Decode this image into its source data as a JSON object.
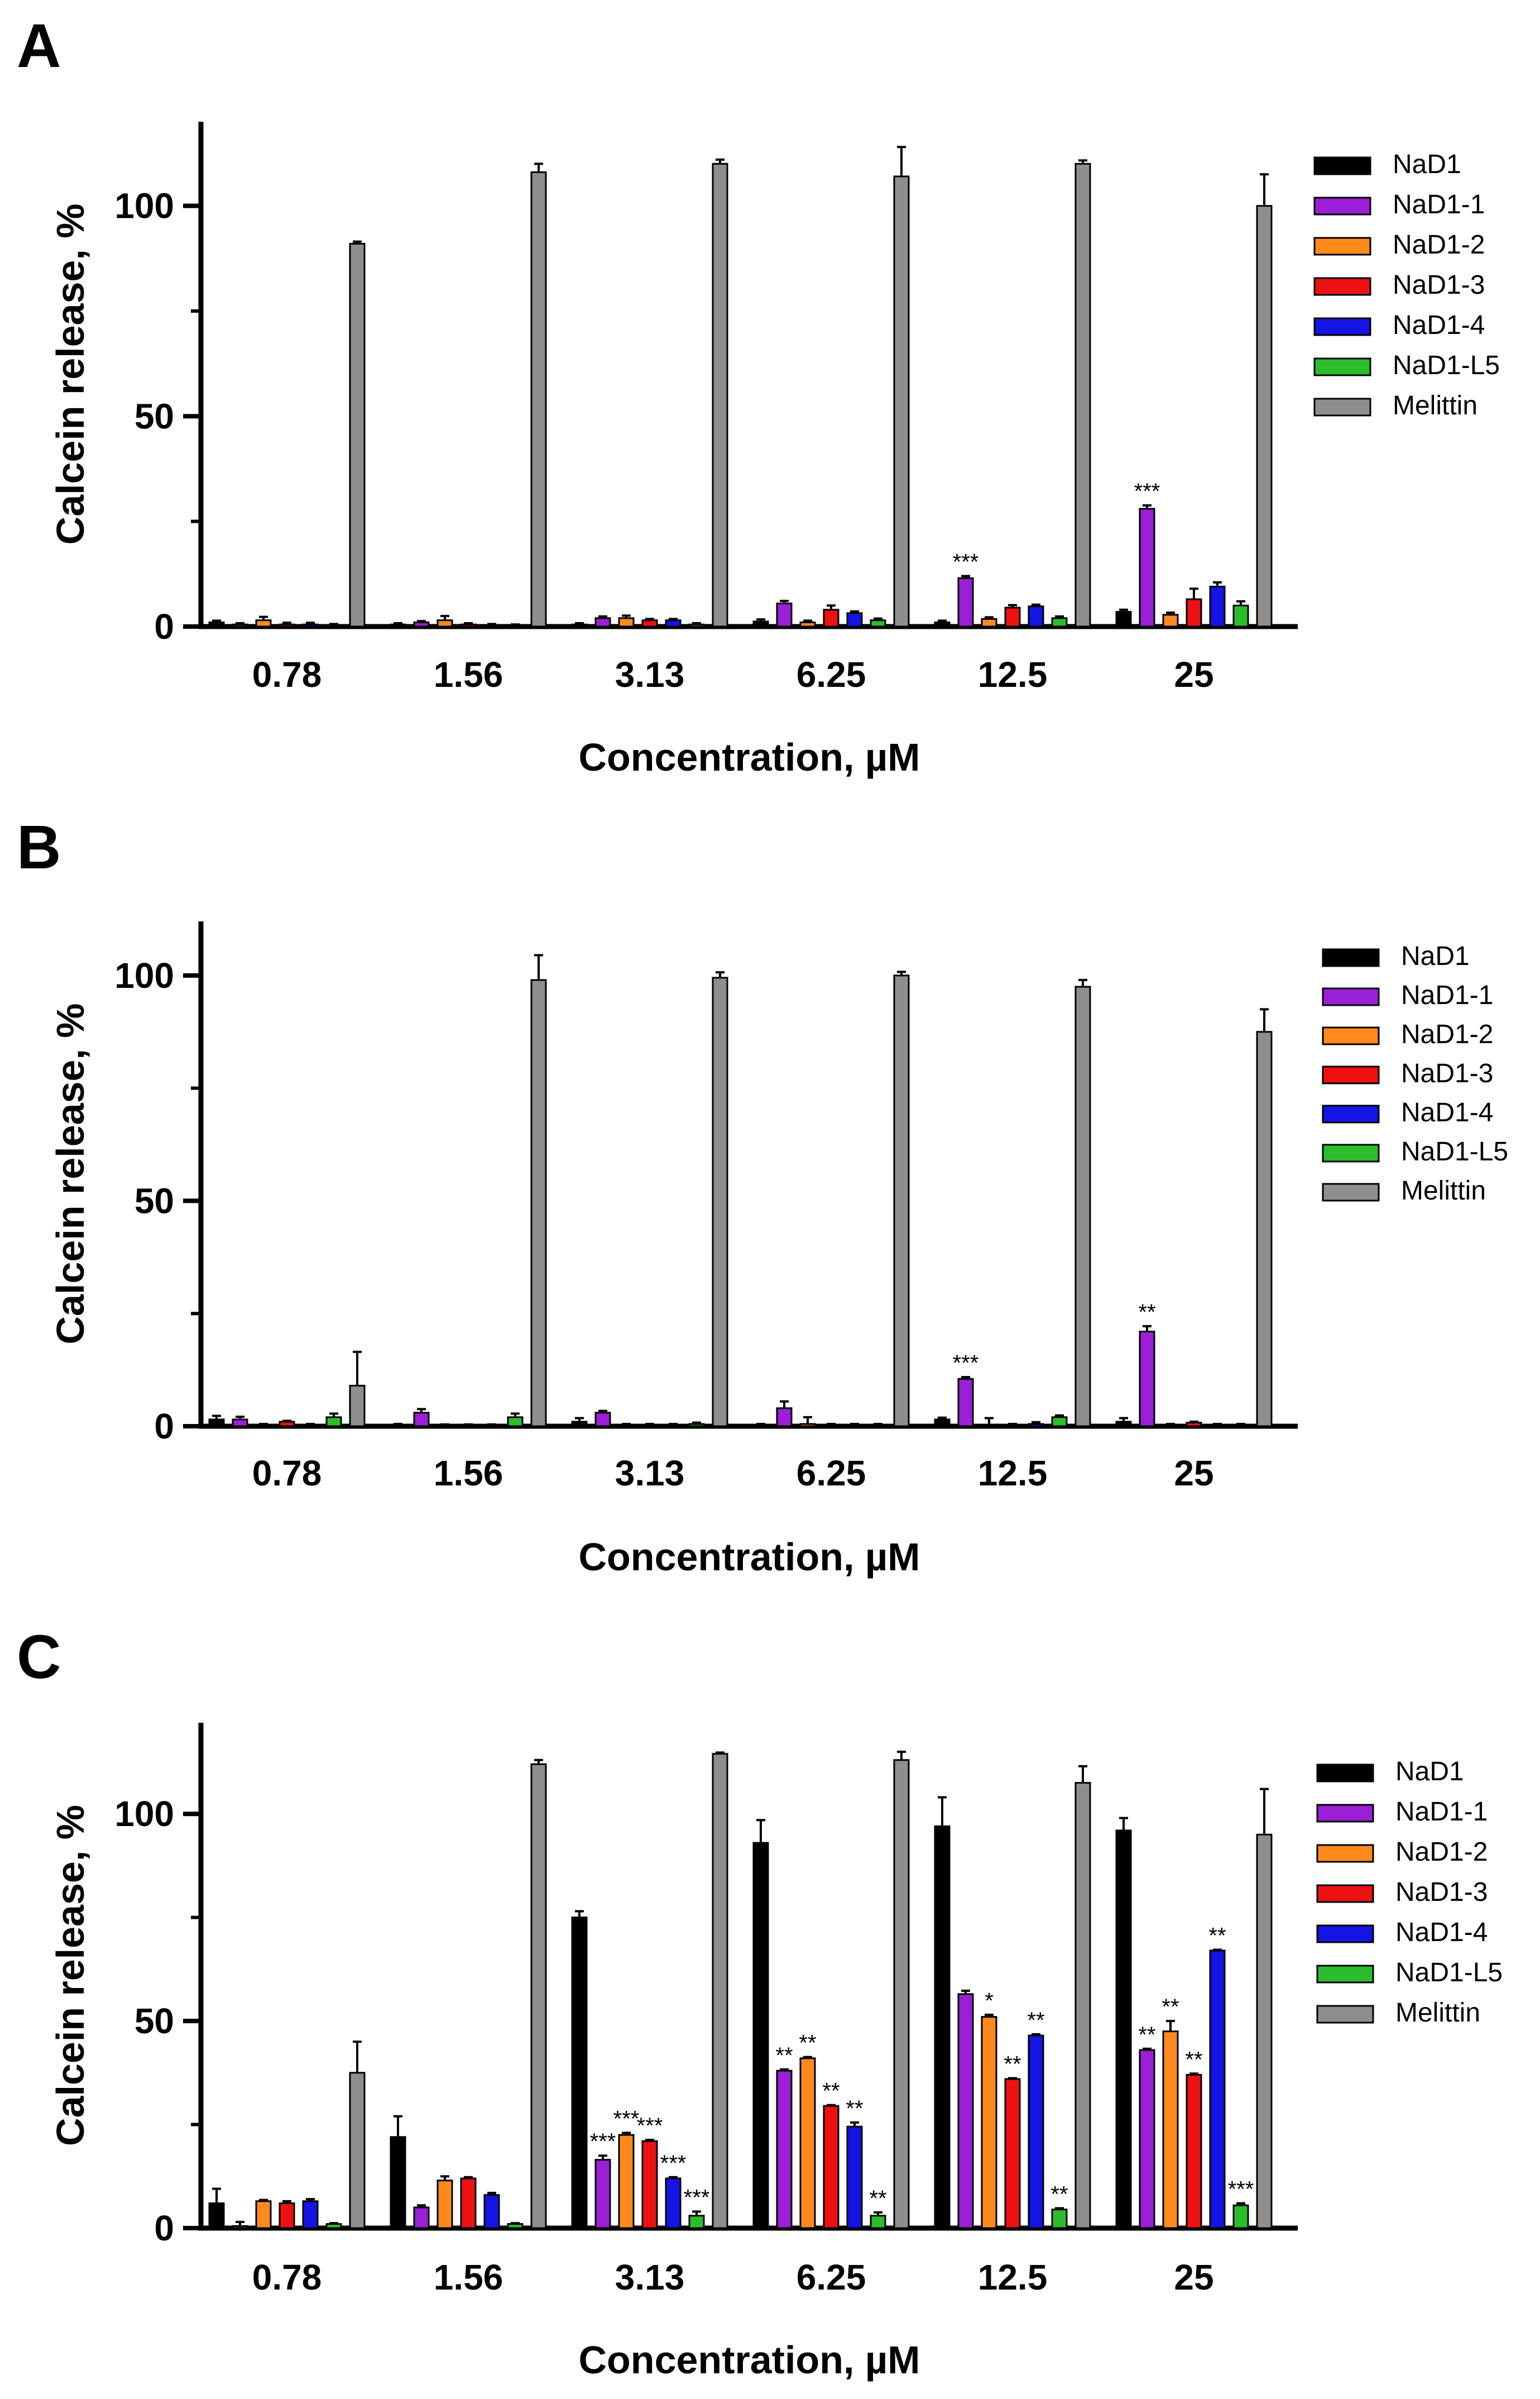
{
  "colors": {
    "NaD1": "#000000",
    "NaD1-1": "#9a1fd6",
    "NaD1-2": "#ff8a1c",
    "NaD1-3": "#ee1111",
    "NaD1-4": "#1414e6",
    "NaD1-L5": "#2bbd2b",
    "Melittin": "#8e8e8e"
  },
  "chart_data": [
    {
      "panel": "A",
      "type": "bar",
      "title": "",
      "xlabel": "Concentration, µM",
      "ylabel": "Calcein release, %",
      "ylim": [
        0,
        120
      ],
      "yticks": [
        "0",
        "50",
        "100"
      ],
      "categories": [
        "0.78",
        "1.56",
        "3.13",
        "6.25",
        "12.5",
        "25"
      ],
      "legend": [
        "NaD1",
        "NaD1-1",
        "NaD1-2",
        "NaD1-3",
        "NaD1-4",
        "NaD1-L5",
        "Melittin"
      ],
      "legend_position": "right",
      "series": [
        {
          "name": "NaD1",
          "values": [
            1,
            0.5,
            0.5,
            1.2,
            1,
            3.5
          ],
          "errors": [
            0.4,
            0.3,
            0.3,
            0.5,
            0.4,
            0.5
          ]
        },
        {
          "name": "NaD1-1",
          "values": [
            0.5,
            1,
            2,
            5.5,
            11.5,
            28
          ],
          "errors": [
            0.3,
            0.3,
            0.4,
            0.6,
            0.5,
            0.8
          ],
          "sig": [
            "",
            "",
            "",
            "",
            "***",
            "***"
          ]
        },
        {
          "name": "NaD1-2",
          "values": [
            1.5,
            1.5,
            2,
            1,
            1.8,
            2.8
          ],
          "errors": [
            0.8,
            1,
            0.6,
            0.4,
            0.4,
            0.5
          ]
        },
        {
          "name": "NaD1-3",
          "values": [
            0.5,
            0.5,
            1.5,
            4,
            4.5,
            6.5
          ],
          "errors": [
            0.4,
            0.3,
            0.3,
            1,
            0.6,
            2.5
          ]
        },
        {
          "name": "NaD1-4",
          "values": [
            0.5,
            0.3,
            1.5,
            3.2,
            4.8,
            9.5
          ],
          "errors": [
            0.4,
            0.3,
            0.3,
            0.4,
            0.4,
            1
          ]
        },
        {
          "name": "NaD1-L5",
          "values": [
            0.3,
            0.3,
            0.5,
            1.5,
            2,
            5
          ],
          "errors": [
            0.3,
            0.2,
            0.3,
            0.4,
            0.4,
            1
          ]
        },
        {
          "name": "Melittin",
          "values": [
            91,
            108,
            110,
            107,
            110,
            100
          ],
          "errors": [
            0.5,
            2,
            1,
            7,
            0.8,
            7.5
          ]
        }
      ]
    },
    {
      "panel": "B",
      "type": "bar",
      "title": "",
      "xlabel": "Concentration, µM",
      "ylabel": "Calcein release, %",
      "ylim": [
        0,
        112
      ],
      "yticks": [
        "0",
        "50",
        "100"
      ],
      "categories": [
        "0.78",
        "1.56",
        "3.13",
        "6.25",
        "12.5",
        "25"
      ],
      "legend": [
        "NaD1",
        "NaD1-1",
        "NaD1-2",
        "NaD1-3",
        "NaD1-4",
        "NaD1-L5",
        "Melittin"
      ],
      "legend_position": "right",
      "series": [
        {
          "name": "NaD1",
          "values": [
            1.5,
            0.3,
            1,
            0.3,
            1.5,
            1
          ],
          "errors": [
            0.8,
            0.2,
            0.8,
            0.2,
            0.4,
            0.8
          ]
        },
        {
          "name": "NaD1-1",
          "values": [
            1.5,
            3,
            3,
            4,
            10.5,
            21
          ],
          "errors": [
            0.6,
            0.8,
            0.4,
            1.5,
            0.4,
            1.2
          ],
          "sig": [
            "",
            "",
            "",
            "",
            "***",
            "**"
          ]
        },
        {
          "name": "NaD1-2",
          "values": [
            0.3,
            0.2,
            0.3,
            0.5,
            0.3,
            0.3
          ],
          "errors": [
            0.2,
            0.2,
            0.2,
            1.5,
            1.5,
            0.2
          ]
        },
        {
          "name": "NaD1-3",
          "values": [
            1,
            0.2,
            0.3,
            0.3,
            0.3,
            0.8
          ],
          "errors": [
            0.2,
            0.2,
            0.2,
            0.2,
            0.2,
            0.2
          ]
        },
        {
          "name": "NaD1-4",
          "values": [
            0.3,
            0.2,
            0.3,
            0.3,
            0.5,
            0.3
          ],
          "errors": [
            0.2,
            0.2,
            0.2,
            0.2,
            0.4,
            0.2
          ]
        },
        {
          "name": "NaD1-L5",
          "values": [
            2,
            2,
            0.5,
            0.3,
            2,
            0.3
          ],
          "errors": [
            0.8,
            0.8,
            0.3,
            0.2,
            0.4,
            0.2
          ]
        },
        {
          "name": "Melittin",
          "values": [
            9,
            99,
            99.5,
            100,
            97.5,
            87.5
          ],
          "errors": [
            7.5,
            5.5,
            1.2,
            0.8,
            1.5,
            5
          ]
        }
      ]
    },
    {
      "panel": "C",
      "type": "bar",
      "title": "",
      "xlabel": "Concentration, µM",
      "ylabel": "Calcein release, %",
      "ylim": [
        0,
        122
      ],
      "yticks": [
        "0",
        "50",
        "100"
      ],
      "categories": [
        "0.78",
        "1.56",
        "3.13",
        "6.25",
        "12.5",
        "25"
      ],
      "legend": [
        "NaD1",
        "NaD1-1",
        "NaD1-2",
        "NaD1-3",
        "NaD1-4",
        "NaD1-L5",
        "Melittin"
      ],
      "legend_position": "right",
      "series": [
        {
          "name": "NaD1",
          "values": [
            6,
            22,
            75,
            93,
            97,
            96
          ],
          "errors": [
            3.5,
            5,
            1.5,
            5.5,
            7,
            3
          ]
        },
        {
          "name": "NaD1-1",
          "values": [
            0.5,
            5,
            16.5,
            38,
            56.5,
            43
          ],
          "errors": [
            1,
            0.5,
            1,
            0.3,
            0.8,
            0.3
          ],
          "sig": [
            "",
            "",
            "***",
            "**",
            "",
            "**"
          ]
        },
        {
          "name": "NaD1-2",
          "values": [
            6.5,
            11.5,
            22.5,
            41,
            51,
            47.5
          ],
          "errors": [
            0.3,
            1,
            0.5,
            0.3,
            0.5,
            2.5
          ],
          "sig": [
            "",
            "",
            "***",
            "**",
            "*",
            "**"
          ]
        },
        {
          "name": "NaD1-3",
          "values": [
            6,
            12,
            21,
            29.5,
            36,
            37
          ],
          "errors": [
            0.5,
            0.3,
            0.3,
            0.2,
            0.2,
            0.3
          ],
          "sig": [
            "",
            "",
            "***",
            "**",
            "**",
            "**"
          ]
        },
        {
          "name": "NaD1-4",
          "values": [
            6.5,
            8,
            12,
            24.5,
            46.5,
            67
          ],
          "errors": [
            0.5,
            0.5,
            0.3,
            1,
            0.3,
            0.2
          ],
          "sig": [
            "",
            "",
            "***",
            "**",
            "**",
            "**"
          ]
        },
        {
          "name": "NaD1-L5",
          "values": [
            1,
            1,
            3,
            3,
            4.5,
            5.5
          ],
          "errors": [
            0.2,
            0.2,
            1,
            0.8,
            0.3,
            0.5
          ],
          "sig": [
            "",
            "",
            "***",
            "**",
            "**",
            "***"
          ]
        },
        {
          "name": "Melittin",
          "values": [
            37.5,
            112,
            114.5,
            113,
            107.5,
            95
          ],
          "errors": [
            7.5,
            1,
            0.3,
            2,
            4,
            11
          ]
        }
      ]
    }
  ]
}
